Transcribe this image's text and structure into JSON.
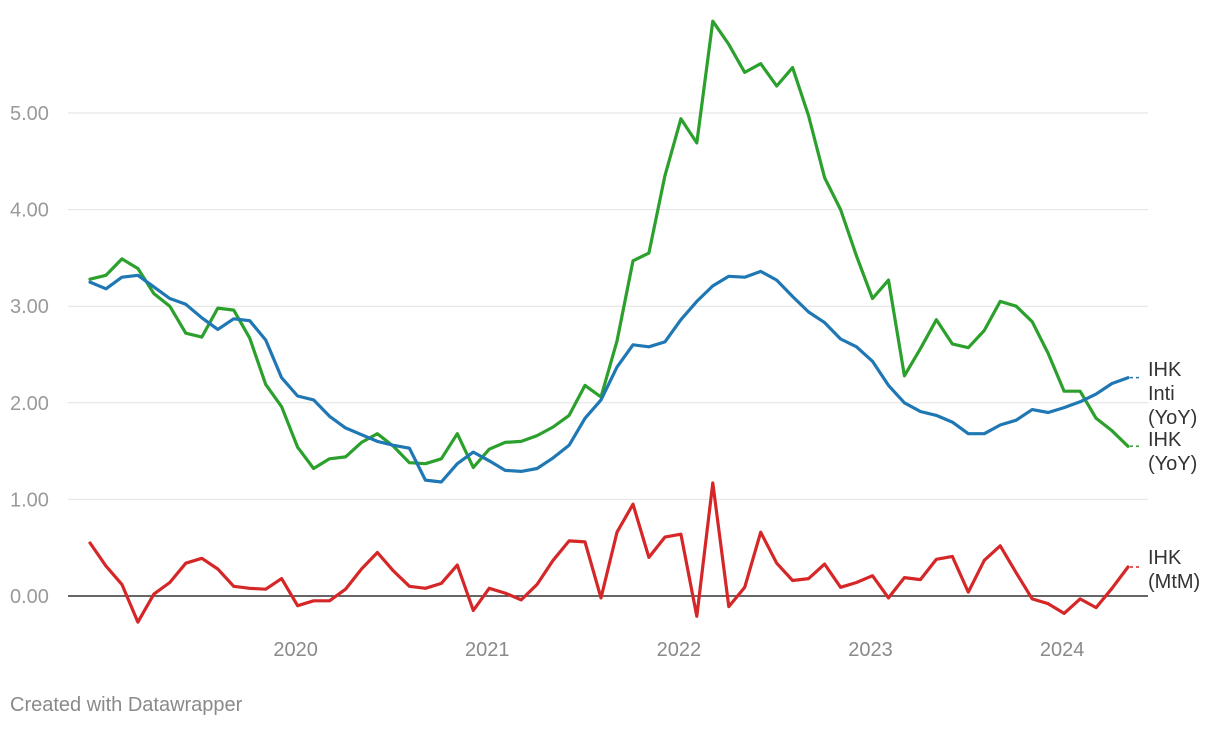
{
  "chart_data": {
    "type": "line",
    "title": "",
    "xlabel": "",
    "ylabel": "",
    "ylim": [
      -0.3,
      6.0
    ],
    "y_ticks": [
      "0.00",
      "1.00",
      "2.00",
      "3.00",
      "4.00",
      "5.00"
    ],
    "x_ticks": [
      "2020",
      "2021",
      "2022",
      "2023",
      "2024"
    ],
    "grid": true,
    "x": [
      "2019-06",
      "2019-07",
      "2019-08",
      "2019-09",
      "2019-10",
      "2019-11",
      "2019-12",
      "2020-01",
      "2020-02",
      "2020-03",
      "2020-04",
      "2020-05",
      "2020-06",
      "2020-07",
      "2020-08",
      "2020-09",
      "2020-10",
      "2020-11",
      "2020-12",
      "2021-01",
      "2021-02",
      "2021-03",
      "2021-04",
      "2021-05",
      "2021-06",
      "2021-07",
      "2021-08",
      "2021-09",
      "2021-10",
      "2021-11",
      "2021-12",
      "2022-01",
      "2022-02",
      "2022-03",
      "2022-04",
      "2022-05",
      "2022-06",
      "2022-07",
      "2022-08",
      "2022-09",
      "2022-10",
      "2022-11",
      "2022-12",
      "2023-01",
      "2023-02",
      "2023-03",
      "2023-04",
      "2023-05",
      "2023-06",
      "2023-07",
      "2023-08",
      "2023-09",
      "2023-10",
      "2023-11",
      "2023-12",
      "2024-01",
      "2024-02",
      "2024-03",
      "2024-04",
      "2024-05",
      "2024-06",
      "2024-07",
      "2024-08",
      "2024-09",
      "2024-10",
      "2024-11"
    ],
    "series": [
      {
        "name": "IHK (YoY)",
        "label_lines": [
          "IHK",
          "(YoY)"
        ],
        "color": "#2ca02c",
        "values": [
          3.28,
          3.32,
          3.49,
          3.39,
          3.13,
          3.0,
          2.72,
          2.68,
          2.98,
          2.96,
          2.67,
          2.19,
          1.96,
          1.54,
          1.32,
          1.42,
          1.44,
          1.59,
          1.68,
          1.55,
          1.38,
          1.37,
          1.42,
          1.68,
          1.33,
          1.52,
          1.59,
          1.6,
          1.66,
          1.75,
          1.87,
          2.18,
          2.06,
          2.64,
          3.47,
          3.55,
          4.35,
          4.94,
          4.69,
          5.95,
          5.71,
          5.42,
          5.51,
          5.28,
          5.47,
          4.97,
          4.33,
          4.0,
          3.52,
          3.08,
          3.27,
          2.28,
          2.56,
          2.86,
          2.61,
          2.57,
          2.75,
          3.05,
          3.0,
          2.84,
          2.51,
          2.12,
          2.12,
          1.84,
          1.71,
          1.55
        ]
      },
      {
        "name": "IHK Inti (YoY)",
        "label_lines": [
          "IHK",
          "Inti",
          "(YoY)"
        ],
        "color": "#1f77b4",
        "values": [
          3.25,
          3.18,
          3.3,
          3.32,
          3.2,
          3.08,
          3.02,
          2.88,
          2.76,
          2.87,
          2.85,
          2.65,
          2.26,
          2.07,
          2.03,
          1.86,
          1.74,
          1.67,
          1.6,
          1.56,
          1.53,
          1.2,
          1.18,
          1.37,
          1.49,
          1.4,
          1.3,
          1.29,
          1.32,
          1.43,
          1.56,
          1.84,
          2.03,
          2.37,
          2.6,
          2.58,
          2.63,
          2.86,
          3.05,
          3.21,
          3.31,
          3.3,
          3.36,
          3.27,
          3.1,
          2.94,
          2.83,
          2.66,
          2.58,
          2.43,
          2.18,
          2.0,
          1.91,
          1.87,
          1.8,
          1.68,
          1.68,
          1.77,
          1.82,
          1.93,
          1.9,
          1.95,
          2.01,
          2.09,
          2.2,
          2.26
        ]
      },
      {
        "name": "IHK (MtM)",
        "label_lines": [
          "IHK",
          "(MtM)"
        ],
        "color": "#d62728",
        "values": [
          0.55,
          0.31,
          0.12,
          -0.27,
          0.02,
          0.14,
          0.34,
          0.39,
          0.28,
          0.1,
          0.08,
          0.07,
          0.18,
          -0.1,
          -0.05,
          -0.05,
          0.07,
          0.28,
          0.45,
          0.26,
          0.1,
          0.08,
          0.13,
          0.32,
          -0.15,
          0.08,
          0.03,
          -0.04,
          0.12,
          0.37,
          0.57,
          0.56,
          -0.02,
          0.66,
          0.95,
          0.4,
          0.61,
          0.64,
          -0.21,
          1.17,
          -0.11,
          0.09,
          0.66,
          0.34,
          0.16,
          0.18,
          0.33,
          0.09,
          0.14,
          0.21,
          -0.02,
          0.19,
          0.17,
          0.38,
          0.41,
          0.04,
          0.37,
          0.52,
          0.24,
          -0.03,
          -0.08,
          -0.18,
          -0.03,
          -0.12,
          0.08,
          0.3
        ]
      }
    ]
  },
  "footer": {
    "credit": "Created with Datawrapper"
  }
}
